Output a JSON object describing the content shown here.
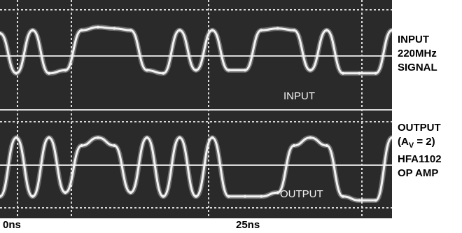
{
  "chart_data": [
    {
      "type": "line",
      "title": "",
      "xlabel": "",
      "ylabel": "",
      "x_tick_labels": [
        "0ns",
        "25ns"
      ],
      "in_plot_label": "INPUT",
      "side_label": [
        "INPUT",
        "220MHz",
        "SIGNAL"
      ],
      "x": [
        0,
        1.7,
        3.4,
        5.1,
        6.8,
        8.5,
        10.2,
        11.9,
        13.6,
        15.3,
        17,
        18.7,
        20.4,
        22.1,
        23.8,
        25.5,
        27.2,
        28.9,
        30.6,
        32.3,
        34,
        35.7,
        37.4,
        39.1,
        40.8
      ],
      "values": [
        0.8,
        0.15,
        0.85,
        0.15,
        0.2,
        0.85,
        0.9,
        0.88,
        0.85,
        0.2,
        0.15,
        0.85,
        0.2,
        0.85,
        0.2,
        0.2,
        0.85,
        0.88,
        0.85,
        0.2,
        0.85,
        0.15,
        0.15,
        0.15,
        0.85
      ],
      "colors": {
        "background": "#2a2a2a",
        "trace": "#f2f2f2",
        "grid": "#d9d9d9"
      }
    },
    {
      "type": "line",
      "title": "",
      "xlabel": "",
      "ylabel": "",
      "x_tick_labels": [
        "0ns",
        "25ns"
      ],
      "in_plot_label": "OUTPUT",
      "side_label": [
        "OUTPUT",
        "(AV = 2)",
        "HFA1102",
        "OP AMP"
      ],
      "x": [
        0,
        1.7,
        3.4,
        5.1,
        6.8,
        8.5,
        10.2,
        11.9,
        13.6,
        15.3,
        17,
        18.7,
        20.4,
        22.1,
        23.8,
        25.5,
        27.2,
        28.9,
        30.6,
        32.3,
        34,
        35.7,
        37.4,
        39.1,
        40.8
      ],
      "values": [
        0.1,
        0.85,
        0.1,
        0.85,
        0.15,
        0.75,
        0.85,
        0.75,
        0.15,
        0.85,
        0.1,
        0.85,
        0.1,
        0.85,
        0.1,
        0.1,
        0.1,
        0.15,
        0.75,
        0.85,
        0.75,
        0.1,
        0.05,
        0.05,
        0.85
      ],
      "colors": {
        "background": "#2a2a2a",
        "trace": "#f2f2f2",
        "grid": "#d9d9d9"
      }
    }
  ],
  "labels": {
    "input": [
      "INPUT",
      "220MHz",
      "SIGNAL"
    ],
    "output_line1": "OUTPUT",
    "output_av_prefix": "(A",
    "output_av_sub": "V",
    "output_av_suffix": " = 2)",
    "output_line3": "HFA1102",
    "output_line4": "OP AMP",
    "x0": "0ns",
    "x25": "25ns"
  }
}
